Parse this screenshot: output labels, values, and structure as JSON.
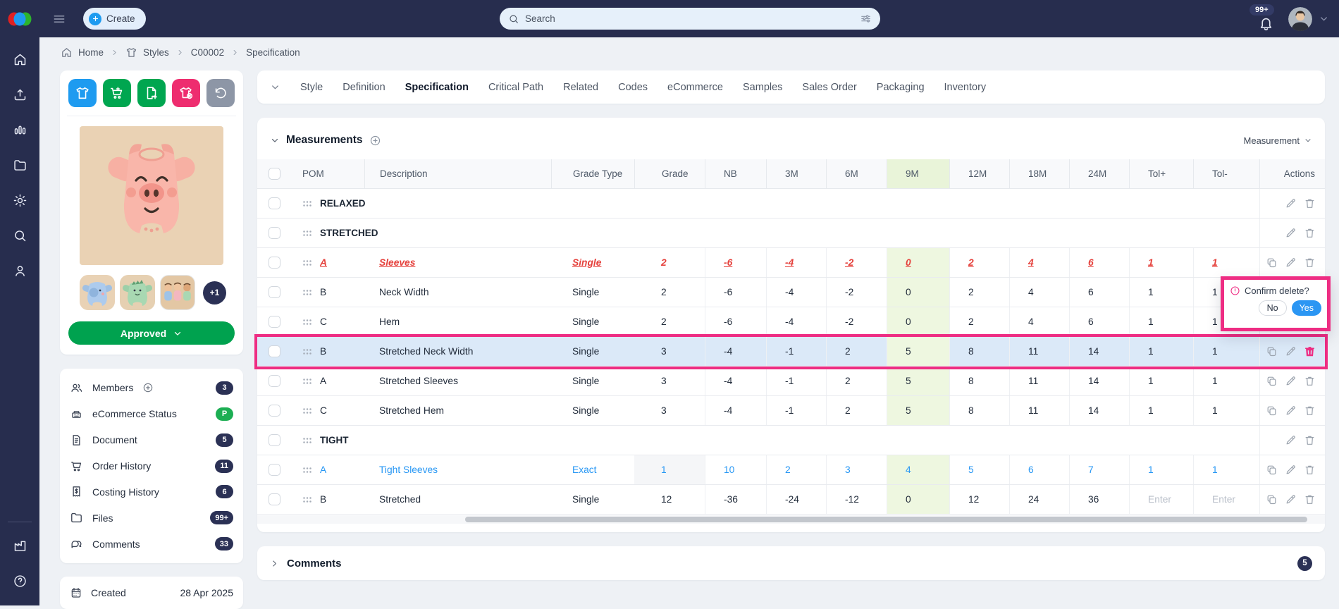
{
  "topbar": {
    "create_label": "Create",
    "search_placeholder": "Search",
    "notification_count": "99+"
  },
  "breadcrumb": {
    "items": [
      {
        "label": "Home",
        "icon": "home"
      },
      {
        "label": "Styles",
        "icon": "shirt"
      },
      {
        "label": "C00002"
      },
      {
        "label": "Specification"
      }
    ]
  },
  "sidebar": {
    "icons": [
      "home",
      "upload",
      "chart",
      "folder",
      "gear",
      "search",
      "user"
    ],
    "bottom_icons": [
      "factory",
      "help"
    ]
  },
  "style_panel": {
    "action_buttons": [
      {
        "icon": "tshirt",
        "color": "#1e9bf0",
        "name": "style-button"
      },
      {
        "icon": "cartplus",
        "color": "#00a650",
        "name": "add-to-order-button"
      },
      {
        "icon": "docplus",
        "color": "#00a650",
        "name": "add-document-button"
      },
      {
        "icon": "tshirtx",
        "color": "#ee2d6f",
        "name": "remove-style-button"
      },
      {
        "icon": "rotate",
        "color": "#8d96a6",
        "name": "history-button"
      }
    ],
    "more_images_label": "+1",
    "status_label": "Approved",
    "links": [
      {
        "label": "Members",
        "icon": "users",
        "badge": "3",
        "badge_color": "#2b3155",
        "has_add": true
      },
      {
        "label": "eCommerce Status",
        "icon": "register",
        "badge": "P",
        "badge_color": "#1cae53"
      },
      {
        "label": "Document",
        "icon": "document",
        "badge": "5",
        "badge_color": "#2b3155"
      },
      {
        "label": "Order History",
        "icon": "cart",
        "badge": "11",
        "badge_color": "#2b3155"
      },
      {
        "label": "Costing History",
        "icon": "receipt",
        "badge": "6",
        "badge_color": "#2b3155"
      },
      {
        "label": "Files",
        "icon": "folder",
        "badge": "99+",
        "badge_color": "#2b3155"
      },
      {
        "label": "Comments",
        "icon": "chat",
        "badge": "33",
        "badge_color": "#2b3155"
      }
    ],
    "created_label": "Created",
    "created_value": "28 Apr 2025"
  },
  "tabs": {
    "items": [
      "Style",
      "Definition",
      "Specification",
      "Critical Path",
      "Related",
      "Codes",
      "eCommerce",
      "Samples",
      "Sales Order",
      "Packaging",
      "Inventory"
    ],
    "active": "Specification"
  },
  "measurements": {
    "title": "Measurements",
    "view_selector": "Measurement",
    "columns": [
      "POM",
      "Description",
      "Grade Type",
      "Grade",
      "NB",
      "3M",
      "6M",
      "9M",
      "12M",
      "18M",
      "24M",
      "Tol+",
      "Tol-",
      "Actions"
    ],
    "highlighted_column": "9M",
    "rows": [
      {
        "type": "group",
        "label": "RELAXED"
      },
      {
        "type": "group",
        "label": "STRETCHED"
      },
      {
        "type": "data",
        "variant": "red",
        "pom": "A",
        "description": "Sleeves",
        "grade_type": "Single",
        "grade": "2",
        "values": [
          "-6",
          "-4",
          "-2",
          "0",
          "2",
          "4",
          "6"
        ],
        "tol_plus": "1",
        "tol_minus": "1"
      },
      {
        "type": "data",
        "variant": "normal",
        "pom": "B",
        "description": "Neck Width",
        "grade_type": "Single",
        "grade": "2",
        "values": [
          "-6",
          "-4",
          "-2",
          "0",
          "2",
          "4",
          "6"
        ],
        "tol_plus": "1",
        "tol_minus": "1"
      },
      {
        "type": "data",
        "variant": "normal",
        "pom": "C",
        "description": "Hem",
        "grade_type": "Single",
        "grade": "2",
        "values": [
          "-6",
          "-4",
          "-2",
          "0",
          "2",
          "4",
          "6"
        ],
        "tol_plus": "1",
        "tol_minus": "1"
      },
      {
        "type": "data",
        "variant": "selected",
        "pom": "B",
        "description": "Stretched Neck Width",
        "grade_type": "Single",
        "grade": "3",
        "values": [
          "-4",
          "-1",
          "2",
          "5",
          "8",
          "11",
          "14"
        ],
        "tol_plus": "1",
        "tol_minus": "1"
      },
      {
        "type": "data",
        "variant": "normal",
        "pom": "A",
        "description": "Stretched Sleeves",
        "grade_type": "Single",
        "grade": "3",
        "values": [
          "-4",
          "-1",
          "2",
          "5",
          "8",
          "11",
          "14"
        ],
        "tol_plus": "1",
        "tol_minus": "1"
      },
      {
        "type": "data",
        "variant": "normal",
        "pom": "C",
        "description": "Stretched Hem",
        "grade_type": "Single",
        "grade": "3",
        "values": [
          "-4",
          "-1",
          "2",
          "5",
          "8",
          "11",
          "14"
        ],
        "tol_plus": "1",
        "tol_minus": "1"
      },
      {
        "type": "group",
        "label": "TIGHT"
      },
      {
        "type": "data",
        "variant": "blue",
        "pom": "A",
        "description": "Tight Sleeves",
        "grade_type": "Exact",
        "grade": "1",
        "grade_shaded": true,
        "values": [
          "10",
          "2",
          "3",
          "4",
          "5",
          "6",
          "7"
        ],
        "tol_plus": "1",
        "tol_minus": "1"
      },
      {
        "type": "data",
        "variant": "normal",
        "pom": "B",
        "description": "Stretched",
        "grade_type": "Single",
        "grade": "12",
        "values": [
          "-36",
          "-24",
          "-12",
          "0",
          "12",
          "24",
          "36"
        ],
        "tol_plus": "Enter",
        "tol_minus": "Enter",
        "tol_placeholder": true
      }
    ]
  },
  "delete_popup": {
    "message": "Confirm delete?",
    "no_label": "No",
    "yes_label": "Yes"
  },
  "comments_section": {
    "title": "Comments",
    "badge": "5"
  }
}
